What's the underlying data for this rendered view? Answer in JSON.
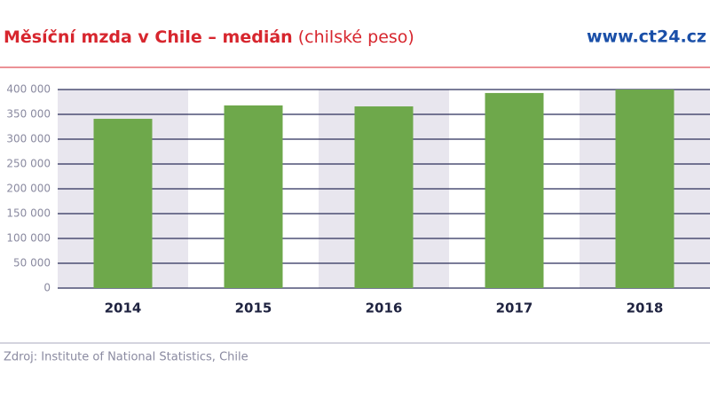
{
  "chart_data": {
    "type": "bar",
    "title": "Měsíční mzda v Chile – medián",
    "subtitle": "(chilské peso)",
    "brand": "www.ct24.cz",
    "source": "Zdroj: Institute of National Statistics, Chile",
    "categories": [
      "2014",
      "2015",
      "2016",
      "2017",
      "2018"
    ],
    "values": [
      341000,
      368000,
      366000,
      393000,
      400000
    ],
    "color": "#6ea84b",
    "ylim": [
      0,
      400000
    ],
    "yticks": [
      0,
      {
        "value": 50000,
        "label": "50 000"
      },
      {
        "value": 100000,
        "label": "100 000"
      },
      {
        "value": 150000,
        "label": "150 000"
      },
      {
        "value": 200000,
        "label": "200 000"
      },
      {
        "value": 250000,
        "label": "250 000"
      },
      {
        "value": 300000,
        "label": "300 000"
      },
      {
        "value": 350000,
        "label": "350 000"
      },
      {
        "value": 400000,
        "label": "400 000"
      }
    ],
    "grid": true
  }
}
